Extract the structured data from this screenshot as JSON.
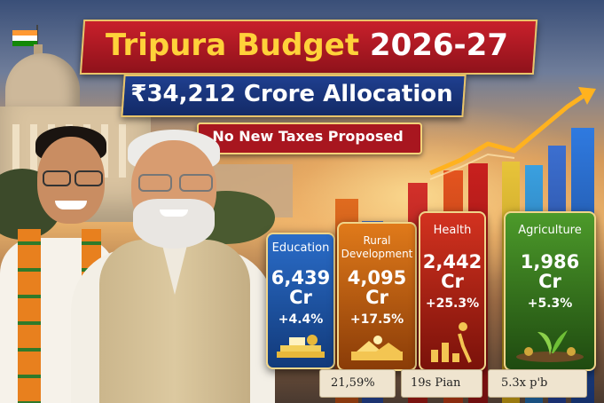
{
  "title": {
    "part1": "Tripura Budget ",
    "part2": "2026-27"
  },
  "subtitle": "₹34,212 Crore Allocation",
  "tag": "No New Taxes Proposed",
  "sectors": [
    {
      "name": "Education",
      "value": "6,439",
      "unit": "Cr",
      "growth": "+4.4%",
      "color": "#1f5fb0",
      "icon": "books-icon"
    },
    {
      "name": "Rural\nDevelopment",
      "value": "4,095",
      "unit": "Cr",
      "growth": "+17.5%",
      "color": "#c96a10",
      "icon": "village-icon"
    },
    {
      "name": "Health",
      "value": "2,442",
      "unit": "Cr",
      "growth": "+25.3%",
      "color": "#c42a1a",
      "icon": "growth-icon"
    },
    {
      "name": "Agriculture",
      "value": "1,986",
      "unit": "Cr",
      "growth": "+5.3%",
      "color": "#3f8a22",
      "icon": "plant-icon"
    }
  ],
  "strips": [
    "21,59%",
    "19s Pian",
    "5.3x p'b"
  ],
  "colors": {
    "title_red": "#c8202b",
    "banner_blue": "#1f3f8f",
    "accent_gold": "#ffd23a"
  }
}
